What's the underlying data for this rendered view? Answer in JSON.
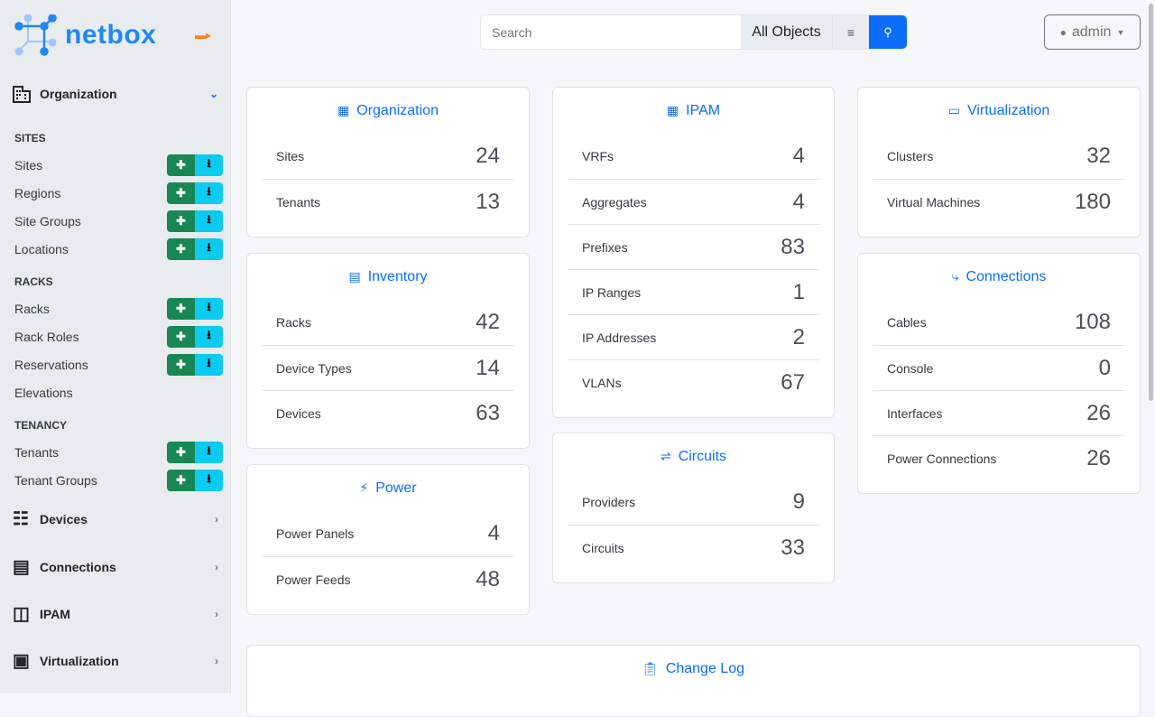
{
  "brand": {
    "name": "netbox",
    "accent": "#0d6efd"
  },
  "sidebar": {
    "org": {
      "label": "Organization"
    },
    "sections": [
      {
        "title": "SITES",
        "items": [
          {
            "label": "Sites",
            "buttons": true
          },
          {
            "label": "Regions",
            "buttons": true
          },
          {
            "label": "Site Groups",
            "buttons": true
          },
          {
            "label": "Locations",
            "buttons": true
          }
        ]
      },
      {
        "title": "RACKS",
        "items": [
          {
            "label": "Racks",
            "buttons": true
          },
          {
            "label": "Rack Roles",
            "buttons": true
          },
          {
            "label": "Reservations",
            "buttons": true
          },
          {
            "label": "Elevations",
            "buttons": false
          }
        ]
      },
      {
        "title": "TENANCY",
        "items": [
          {
            "label": "Tenants",
            "buttons": true
          },
          {
            "label": "Tenant Groups",
            "buttons": true
          }
        ]
      }
    ],
    "menus": [
      {
        "label": "Devices"
      },
      {
        "label": "Connections"
      },
      {
        "label": "IPAM"
      },
      {
        "label": "Virtualization"
      }
    ]
  },
  "search": {
    "placeholder": "Search",
    "scope": "All Objects"
  },
  "user": {
    "name": "admin"
  },
  "cards": [
    {
      "title": "Organization",
      "icon": "building-icon",
      "rows": [
        {
          "label": "Sites",
          "count": "24"
        },
        {
          "label": "Tenants",
          "count": "13"
        }
      ]
    },
    {
      "title": "Inventory",
      "icon": "server-icon",
      "rows": [
        {
          "label": "Racks",
          "count": "42"
        },
        {
          "label": "Device Types",
          "count": "14"
        },
        {
          "label": "Devices",
          "count": "63"
        }
      ]
    },
    {
      "title": "Power",
      "icon": "flash-icon",
      "rows": [
        {
          "label": "Power Panels",
          "count": "4"
        },
        {
          "label": "Power Feeds",
          "count": "48"
        }
      ]
    },
    {
      "title": "IPAM",
      "icon": "counter-icon",
      "rows": [
        {
          "label": "VRFs",
          "count": "4"
        },
        {
          "label": "Aggregates",
          "count": "4"
        },
        {
          "label": "Prefixes",
          "count": "83"
        },
        {
          "label": "IP Ranges",
          "count": "1"
        },
        {
          "label": "IP Addresses",
          "count": "2"
        },
        {
          "label": "VLANs",
          "count": "67"
        }
      ]
    },
    {
      "title": "Circuits",
      "icon": "transit-icon",
      "rows": [
        {
          "label": "Providers",
          "count": "9"
        },
        {
          "label": "Circuits",
          "count": "33"
        }
      ]
    },
    {
      "title": "Virtualization",
      "icon": "monitor-icon",
      "rows": [
        {
          "label": "Clusters",
          "count": "32"
        },
        {
          "label": "Virtual Machines",
          "count": "180"
        }
      ]
    },
    {
      "title": "Connections",
      "icon": "cable-icon",
      "rows": [
        {
          "label": "Cables",
          "count": "108"
        },
        {
          "label": "Console",
          "count": "0"
        },
        {
          "label": "Interfaces",
          "count": "26"
        },
        {
          "label": "Power Connections",
          "count": "26"
        }
      ]
    },
    {
      "title": "Change Log",
      "icon": "clipboard-clock-icon",
      "rows": []
    }
  ]
}
